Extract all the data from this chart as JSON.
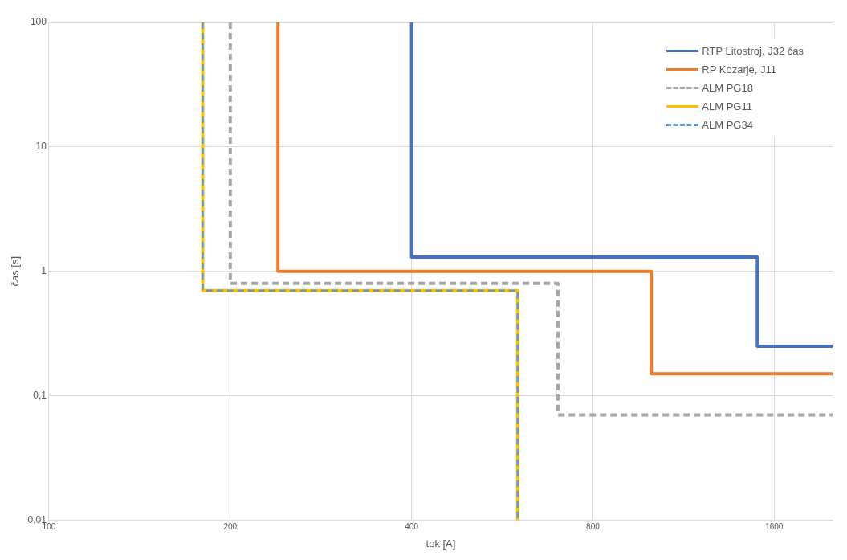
{
  "chart_data": {
    "type": "line",
    "xlabel": "tok [A]",
    "ylabel": "čas [s]",
    "log": "xy",
    "xlim": [
      100,
      2000
    ],
    "xticks": [
      100,
      200,
      400,
      800,
      1600
    ],
    "ylim": [
      0.01,
      100
    ],
    "yticks": [
      {
        "value": 0.01,
        "label": "0,01"
      },
      {
        "value": 0.1,
        "label": "0,1"
      },
      1,
      10,
      100
    ],
    "grid": true,
    "legend": "top right",
    "marker": "none",
    "series": [
      {
        "name": "RTP Litostroj, J32 čas",
        "color": "#4472c4",
        "line_style": "solid",
        "x": [
          400,
          400,
          1500,
          1500,
          2000
        ],
        "values": [
          100,
          1.3,
          1.3,
          0.25,
          0.25
        ]
      },
      {
        "name": "RP Kozarje, J11",
        "color": "#ed7d31",
        "line_style": "solid",
        "x": [
          240,
          240,
          1000,
          1000,
          2000
        ],
        "values": [
          100,
          1,
          1,
          0.15,
          0.15
        ]
      },
      {
        "name": "ALM PG18",
        "color": "#a5a5a5",
        "line_style": "dashed",
        "x": [
          200,
          200,
          700,
          700,
          2000
        ],
        "values": [
          100,
          0.8,
          0.8,
          0.07,
          0.07
        ]
      },
      {
        "name": "ALM PG11",
        "color": "#ffc000",
        "line_style": "solid",
        "x": [
          180,
          180,
          600,
          600
        ],
        "values": [
          100,
          0.7,
          0.7,
          0.01
        ]
      },
      {
        "name": "ALM PG34",
        "color": "#5b9bd5",
        "line_style": "dashed",
        "x": [
          180,
          180,
          600,
          600
        ],
        "values": [
          100,
          0.7,
          0.7,
          0.01
        ]
      }
    ]
  }
}
